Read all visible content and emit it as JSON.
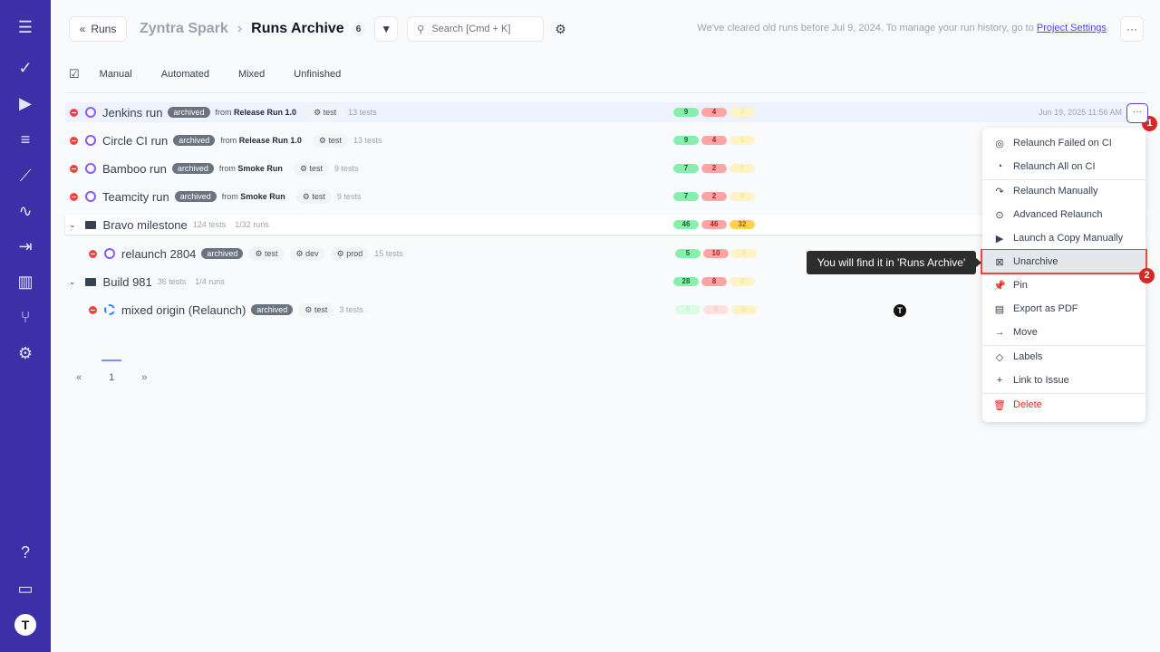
{
  "sidebar": {
    "icons": [
      "menu-icon",
      "check-icon",
      "play-icon",
      "list-check-icon",
      "steps-icon",
      "pulse-icon",
      "import-icon",
      "chart-icon",
      "branch-icon",
      "gear-icon",
      "help-icon",
      "folders-icon",
      "avatar"
    ]
  },
  "header": {
    "back": "Runs",
    "project": "Zyntra Spark",
    "title": "Runs Archive",
    "count": "6",
    "search_placeholder": "Search [Cmd + K]",
    "notice": "We've cleared old runs before Jul 9, 2024. To manage your run history, go to",
    "notice_link": "Project Settings",
    "notice_end": "."
  },
  "tabs": [
    "Manual",
    "Automated",
    "Mixed",
    "Unfinished"
  ],
  "rows": [
    {
      "type": "run",
      "name": "Jenkins run",
      "badge": "archived",
      "from_prefix": "from",
      "from": "Release Run 1.0",
      "tags": [
        "test"
      ],
      "tests": "13 tests",
      "counts": [
        "9",
        "4",
        "0"
      ],
      "date": "Jun 19, 2025 11:56 AM"
    },
    {
      "type": "run",
      "name": "Circle CI run",
      "badge": "archived",
      "from_prefix": "from",
      "from": "Release Run 1.0",
      "tags": [
        "test"
      ],
      "tests": "13 tests",
      "counts": [
        "9",
        "4",
        "0"
      ]
    },
    {
      "type": "run",
      "name": "Bamboo run",
      "badge": "archived",
      "from_prefix": "from",
      "from": "Smoke Run",
      "tags": [
        "test"
      ],
      "tests": "9 tests",
      "counts": [
        "7",
        "2",
        "0"
      ]
    },
    {
      "type": "run",
      "name": "Teamcity run",
      "badge": "archived",
      "from_prefix": "from",
      "from": "Smoke Run",
      "tags": [
        "test"
      ],
      "tests": "9 tests",
      "counts": [
        "7",
        "2",
        "0"
      ]
    },
    {
      "type": "milestone",
      "name": "Bravo milestone",
      "tests": "124 tests",
      "runs": "1/32 runs",
      "counts": [
        "46",
        "46",
        "32"
      ]
    },
    {
      "type": "subrun",
      "name": "relaunch 2804",
      "badge": "archived",
      "tags": [
        "test",
        "dev",
        "prod"
      ],
      "tests": "15 tests",
      "counts": [
        "5",
        "10",
        "0"
      ]
    },
    {
      "type": "milestone",
      "name": "Build 981",
      "tests": "36 tests",
      "runs": "1/4 runs",
      "counts": [
        "28",
        "8",
        "0"
      ]
    },
    {
      "type": "subrun",
      "mixed": true,
      "name": "mixed origin (Relaunch)",
      "badge": "archived",
      "tags": [
        "test"
      ],
      "tests": "3 tests",
      "counts": [
        "0",
        "0",
        "0"
      ]
    }
  ],
  "pagination": {
    "prev": "«",
    "page": "1",
    "next": "»"
  },
  "menu": {
    "items": [
      {
        "label": "Relaunch Failed on CI",
        "icon": "relaunch-failed-icon",
        "glyph": "◎"
      },
      {
        "label": "Relaunch All on CI",
        "icon": "relaunch-all-icon",
        "glyph": "◔"
      },
      {
        "label": "Relaunch Manually",
        "icon": "redo-icon",
        "glyph": "↷"
      },
      {
        "label": "Advanced Relaunch",
        "icon": "play-circle-icon",
        "glyph": "⊙"
      },
      {
        "label": "Launch a Copy Manually",
        "icon": "play-icon",
        "glyph": "▶"
      },
      {
        "label": "Unarchive",
        "icon": "unarchive-icon",
        "glyph": "⊠",
        "selected": true
      },
      {
        "label": "Pin",
        "icon": "pin-icon",
        "glyph": "📌"
      },
      {
        "label": "Export as PDF",
        "icon": "pdf-icon",
        "glyph": "▤"
      },
      {
        "label": "Move",
        "icon": "arrow-right-icon",
        "glyph": "→"
      },
      {
        "label": "Labels",
        "icon": "tag-icon",
        "glyph": "◇"
      },
      {
        "label": "Link to Issue",
        "icon": "plus-icon",
        "glyph": "+"
      },
      {
        "label": "Delete",
        "icon": "trash-icon",
        "glyph": "🗑",
        "danger": true
      }
    ]
  },
  "tooltip": "You will find it in 'Runs Archive'",
  "annotations": [
    "1",
    "2"
  ],
  "colors": {
    "sidebar": "#3b30a8",
    "accent": "#4f46e5",
    "danger": "#ef4444"
  }
}
